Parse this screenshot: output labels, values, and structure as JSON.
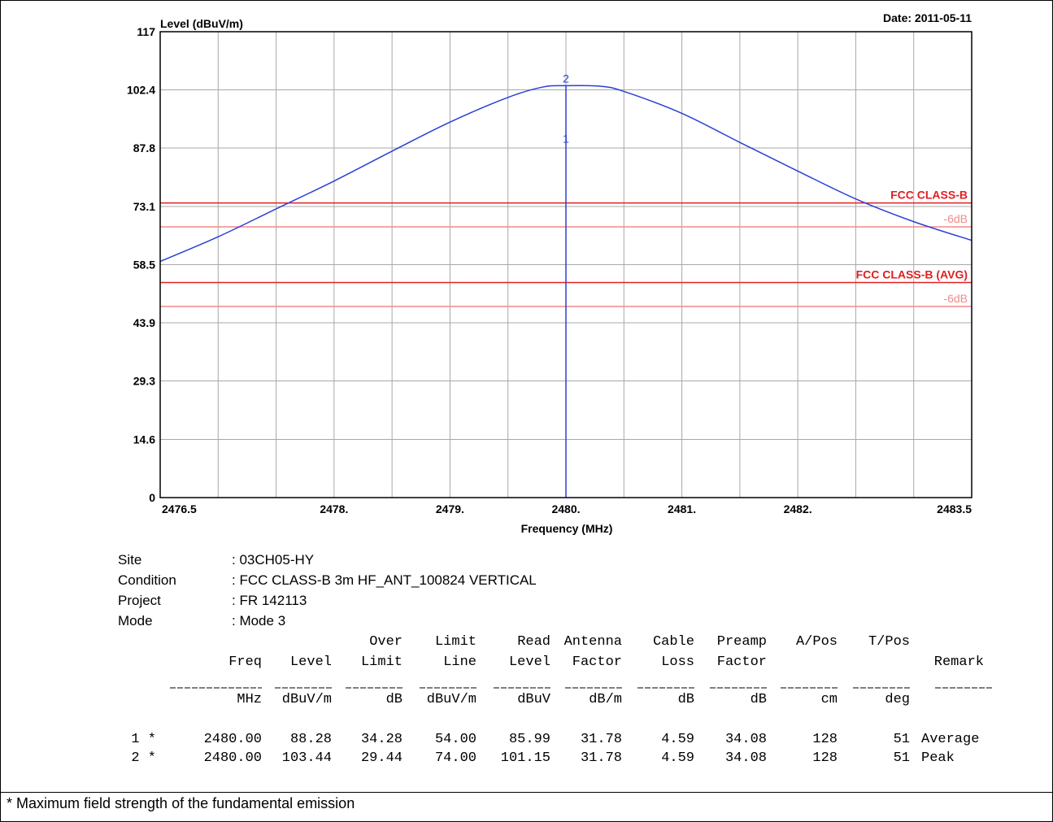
{
  "date_label": "Date: 2011-05-11",
  "chart_data": {
    "type": "line",
    "ylabel": "Level (dBuV/m)",
    "xlabel": "Frequency (MHz)",
    "ylim": [
      0,
      117
    ],
    "xlim": [
      2476.5,
      2483.5
    ],
    "yticks": [
      "117",
      "102.4",
      "87.8",
      "73.1",
      "58.5",
      "43.9",
      "29.3",
      "14.6",
      "0"
    ],
    "ytick_values": [
      117,
      102.4,
      87.8,
      73.1,
      58.5,
      43.9,
      29.3,
      14.6,
      0
    ],
    "xticks": [
      "2476.5",
      "2478.",
      "2479.",
      "2480.",
      "2481.",
      "2482.",
      "2483.5"
    ],
    "xtick_values": [
      2476.5,
      2478.0,
      2479.0,
      2480.0,
      2481.0,
      2482.0,
      2483.5
    ],
    "grid": true,
    "trace": {
      "color": "#2b3fd6",
      "x": [
        2476.5,
        2477.0,
        2477.5,
        2478.0,
        2478.5,
        2479.0,
        2479.5,
        2479.8,
        2480.0,
        2480.3,
        2480.5,
        2481.0,
        2481.5,
        2482.0,
        2482.5,
        2483.0,
        2483.5
      ],
      "y": [
        59.3,
        65.5,
        72.5,
        79.5,
        87.0,
        94.3,
        100.5,
        103.1,
        103.44,
        103.3,
        102.0,
        96.5,
        89.2,
        82.0,
        75.0,
        69.3,
        64.6
      ]
    },
    "marker_line": {
      "x": 2480.0,
      "y_top": 103.44,
      "color": "#2b3fd6"
    },
    "markers": [
      {
        "label": "1",
        "x": 2480.0,
        "y": 88.28
      },
      {
        "label": "2",
        "x": 2480.0,
        "y": 103.44
      }
    ],
    "limit_lines": [
      {
        "label": "FCC CLASS-B",
        "y": 74.0,
        "color": "#e02020",
        "bold": true
      },
      {
        "label": "-6dB",
        "y": 68.0,
        "color": "#f08a8a",
        "bold": false
      },
      {
        "label": "FCC CLASS-B (AVG)",
        "y": 54.0,
        "color": "#e02020",
        "bold": true
      },
      {
        "label": "-6dB",
        "y": 48.0,
        "color": "#f08a8a",
        "bold": false
      }
    ]
  },
  "info": [
    {
      "label": "Site",
      "value": ": 03CH05-HY"
    },
    {
      "label": "Condition",
      "value": ": FCC CLASS-B 3m HF_ANT_100824 VERTICAL"
    },
    {
      "label": "Project",
      "value": ": FR 142113"
    },
    {
      "label": "Mode",
      "value": ": Mode 3"
    }
  ],
  "table": {
    "header1": [
      "",
      "",
      "",
      "Over",
      "Limit",
      "Read",
      "Antenna",
      "Cable",
      "Preamp",
      "A/Pos",
      "T/Pos",
      ""
    ],
    "header2": [
      "",
      "Freq",
      "Level",
      "Limit",
      "Line",
      "Level",
      "Factor",
      "Loss",
      "Factor",
      "",
      "",
      "Remark"
    ],
    "units": [
      "",
      "MHz",
      "dBuV/m",
      "dB",
      "dBuV/m",
      "dBuV",
      "dB/m",
      "dB",
      "dB",
      "cm",
      "deg",
      ""
    ],
    "rows": [
      [
        "1 *",
        "2480.00",
        "88.28",
        "34.28",
        "54.00",
        "85.99",
        "31.78",
        "4.59",
        "34.08",
        "128",
        "51",
        "Average"
      ],
      [
        "2 *",
        "2480.00",
        "103.44",
        "29.44",
        "74.00",
        "101.15",
        "31.78",
        "4.59",
        "34.08",
        "128",
        "51",
        "Peak"
      ]
    ]
  },
  "footnote": "* Maximum field strength of the fundamental emission"
}
